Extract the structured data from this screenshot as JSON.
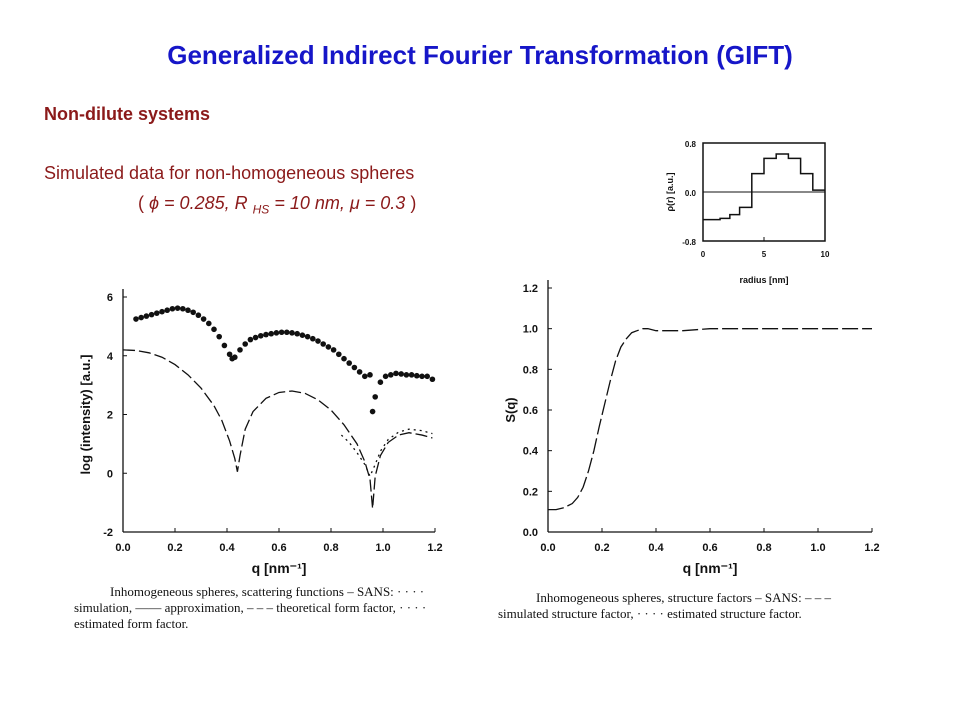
{
  "page": {
    "title": "Generalized Indirect Fourier Transformation (GIFT)",
    "subtitle": "Non-dilute systems",
    "description": "Simulated data for non-homogeneous  spheres",
    "params": {
      "open": "(",
      "phi_symbol": "ϕ",
      "phi_text": " = 0.285, R",
      "rhs_sub": "HS",
      "rhs_text": " = 10 nm, ",
      "mu_symbol": "μ",
      "mu_text": " = 0.3",
      "close": ")"
    },
    "caption_left": [
      "Inhomogeneous spheres, scattering functions – SANS: · · · ·",
      "simulation, —— approximation, – – – theoretical form factor, · · · ·",
      "estimated form factor."
    ],
    "caption_right": [
      "Inhomogeneous   spheres,   structure   factors  –  SANS:  – – –",
      "simulated structure factor,  · · · ·  estimated structure factor."
    ]
  },
  "chart_data": [
    {
      "type": "line",
      "xlabel": "q [nm⁻¹]",
      "ylabel": "log (intensity) [a.u.]",
      "xlim": [
        0.0,
        1.2
      ],
      "ylim": [
        -2,
        6
      ],
      "xticks": [
        "0.0",
        "0.2",
        "0.4",
        "0.6",
        "0.8",
        "1.0",
        "1.2"
      ],
      "yticks": [
        "-2",
        "0",
        "2",
        "4",
        "6"
      ],
      "series": [
        {
          "style": "dots",
          "x": [
            0.05,
            0.07,
            0.09,
            0.11,
            0.13,
            0.15,
            0.17,
            0.19,
            0.21,
            0.23,
            0.25,
            0.27,
            0.29,
            0.31,
            0.33,
            0.35,
            0.37,
            0.39,
            0.41,
            0.42,
            0.43,
            0.45,
            0.47,
            0.49,
            0.51,
            0.53,
            0.55,
            0.57,
            0.59,
            0.61,
            0.63,
            0.65,
            0.67,
            0.69,
            0.71,
            0.73,
            0.75,
            0.77,
            0.79,
            0.81,
            0.83,
            0.85,
            0.87,
            0.89,
            0.91,
            0.93,
            0.95,
            0.96,
            0.97,
            0.99,
            1.01,
            1.03,
            1.05,
            1.07,
            1.09,
            1.11,
            1.13,
            1.15,
            1.17,
            1.19
          ],
          "values": [
            5.25,
            5.3,
            5.35,
            5.4,
            5.45,
            5.5,
            5.55,
            5.6,
            5.62,
            5.6,
            5.55,
            5.48,
            5.38,
            5.25,
            5.1,
            4.9,
            4.65,
            4.35,
            4.05,
            3.9,
            3.95,
            4.2,
            4.4,
            4.55,
            4.62,
            4.68,
            4.72,
            4.75,
            4.78,
            4.8,
            4.8,
            4.78,
            4.75,
            4.7,
            4.65,
            4.58,
            4.5,
            4.4,
            4.3,
            4.2,
            4.05,
            3.9,
            3.75,
            3.6,
            3.45,
            3.3,
            3.35,
            2.1,
            2.6,
            3.1,
            3.3,
            3.35,
            3.4,
            3.38,
            3.35,
            3.35,
            3.32,
            3.3,
            3.3,
            3.2
          ]
        },
        {
          "style": "dashed",
          "x": [
            0.0,
            0.05,
            0.1,
            0.15,
            0.2,
            0.25,
            0.3,
            0.35,
            0.38,
            0.41,
            0.43,
            0.44,
            0.45,
            0.47,
            0.5,
            0.55,
            0.6,
            0.65,
            0.7,
            0.75,
            0.8,
            0.85,
            0.9,
            0.93,
            0.95,
            0.96,
            0.97,
            0.99,
            1.02,
            1.06,
            1.1,
            1.15,
            1.19
          ],
          "values": [
            4.2,
            4.18,
            4.1,
            3.95,
            3.7,
            3.35,
            2.9,
            2.3,
            1.8,
            1.1,
            0.5,
            0.05,
            0.6,
            1.5,
            2.1,
            2.55,
            2.75,
            2.8,
            2.72,
            2.5,
            2.15,
            1.65,
            1.0,
            0.4,
            -0.2,
            -1.2,
            -0.1,
            0.6,
            1.05,
            1.3,
            1.38,
            1.3,
            1.2
          ]
        },
        {
          "style": "dotted",
          "x": [
            0.84,
            0.87,
            0.9,
            0.93,
            0.95,
            0.97,
            0.99,
            1.02,
            1.06,
            1.1,
            1.15,
            1.19
          ],
          "values": [
            1.3,
            1.05,
            0.7,
            0.3,
            -0.1,
            0.3,
            0.75,
            1.15,
            1.4,
            1.5,
            1.45,
            1.35
          ]
        }
      ]
    },
    {
      "type": "line",
      "xlabel": "q [nm⁻¹]",
      "ylabel": "S(q)",
      "xlim": [
        0.0,
        1.2
      ],
      "ylim": [
        0.0,
        1.2
      ],
      "xticks": [
        "0.0",
        "0.2",
        "0.4",
        "0.6",
        "0.8",
        "1.0",
        "1.2"
      ],
      "yticks": [
        "0.0",
        "0.2",
        "0.4",
        "0.6",
        "0.8",
        "1.0",
        "1.2"
      ],
      "series": [
        {
          "style": "dashed",
          "x": [
            0.0,
            0.03,
            0.06,
            0.09,
            0.11,
            0.13,
            0.15,
            0.17,
            0.19,
            0.21,
            0.23,
            0.25,
            0.27,
            0.29,
            0.31,
            0.33,
            0.35,
            0.37,
            0.4,
            0.45,
            0.5,
            0.6,
            0.7,
            0.8,
            0.9,
            1.0,
            1.1,
            1.2
          ],
          "values": [
            0.11,
            0.11,
            0.12,
            0.14,
            0.17,
            0.22,
            0.3,
            0.4,
            0.52,
            0.63,
            0.74,
            0.84,
            0.91,
            0.95,
            0.98,
            0.99,
            1.0,
            1.0,
            0.99,
            0.99,
            0.99,
            1.0,
            1.0,
            1.0,
            1.0,
            1.0,
            1.0,
            1.0
          ]
        }
      ]
    },
    {
      "type": "line",
      "xlabel": "radius [nm]",
      "ylabel": "ρ(r) [a.u.]",
      "xlim": [
        0,
        10
      ],
      "ylim": [
        -0.8,
        0.8
      ],
      "xticks": [
        "0",
        "5",
        "10"
      ],
      "yticks": [
        "0.8",
        "0.0",
        "-0.8"
      ],
      "series": [
        {
          "style": "step",
          "x": [
            0,
            1.4,
            2.2,
            3.0,
            4.0,
            5.0,
            6.0,
            7.0,
            8.0,
            9.0,
            10.0
          ],
          "values": [
            -0.45,
            -0.43,
            -0.37,
            -0.25,
            0.3,
            0.55,
            0.62,
            0.55,
            0.3,
            0.03,
            0.03
          ]
        }
      ]
    }
  ]
}
